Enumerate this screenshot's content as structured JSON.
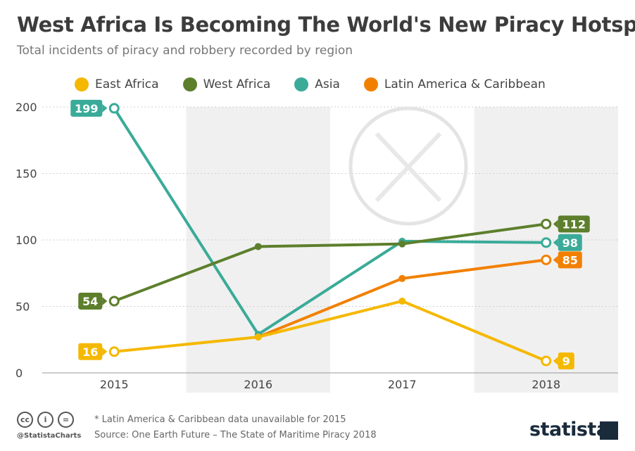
{
  "header": {
    "title": "West Africa Is Becoming The World's New Piracy Hotspot",
    "subtitle": "Total incidents of piracy and robbery recorded by region"
  },
  "footer": {
    "note": "* Latin America & Caribbean data unavailable for 2015",
    "source": "Source: One Earth Future – The State of Maritime Piracy 2018",
    "handle": "@StatistaCharts",
    "brand": "statista",
    "cc_icons": [
      "cc",
      "i",
      "="
    ]
  },
  "chart_data": {
    "type": "line",
    "title": "West Africa Is Becoming The World's New Piracy Hotspot",
    "subtitle": "Total incidents of piracy and robbery recorded by region",
    "categories": [
      "2015",
      "2016",
      "2017",
      "2018"
    ],
    "ylim": [
      0,
      200
    ],
    "yticks": [
      0,
      50,
      100,
      150,
      200
    ],
    "grid": true,
    "legend_position": "top",
    "series": [
      {
        "name": "East Africa",
        "color": "#f5b800",
        "values": [
          16,
          27,
          54,
          9
        ],
        "labels": {
          "0": "16",
          "3": "9"
        }
      },
      {
        "name": "West Africa",
        "color": "#5d7f2c",
        "values": [
          54,
          95,
          97,
          112
        ],
        "labels": {
          "0": "54",
          "3": "112"
        }
      },
      {
        "name": "Asia",
        "color": "#3aab98",
        "values": [
          199,
          29,
          99,
          98
        ],
        "labels": {
          "0": "199",
          "3": "98"
        }
      },
      {
        "name": "Latin America & Caribbean",
        "color": "#f28000",
        "values": [
          null,
          27,
          71,
          85
        ],
        "labels": {
          "3": "85"
        }
      }
    ],
    "draw_order": [
      2,
      3,
      1,
      0
    ]
  }
}
